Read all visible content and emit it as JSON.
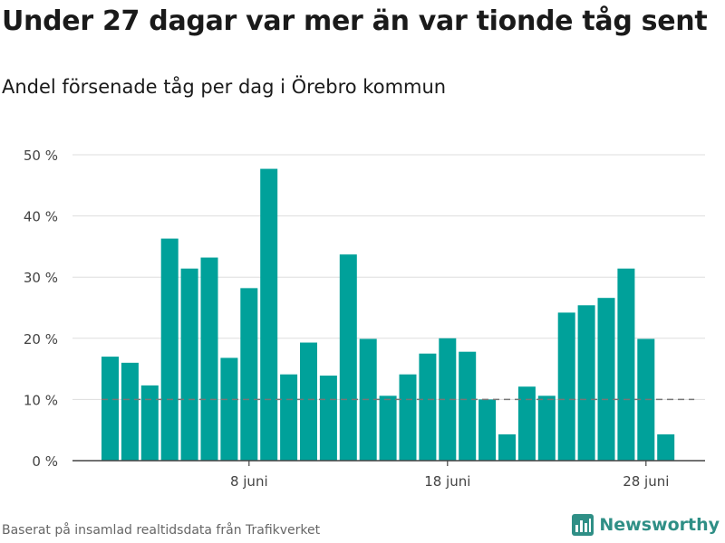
{
  "title": "Under 27 dagar var mer än var tionde tåg sent",
  "subtitle": "Andel försenade tåg per dag i Örebro kommun",
  "source": "Baserat på insamlad realtidsdata från Trafikverket",
  "brand": {
    "name": "Newsworthy",
    "icon": "bar-chart-logo-icon"
  },
  "colors": {
    "bar": "#00a19a",
    "reference_line": "#777777",
    "grid": "#dddddd",
    "brand": "#2f8f86"
  },
  "chart_data": {
    "type": "bar",
    "x_start": "2024-06-01",
    "x_end": "2024-06-30",
    "categories": [
      "1 juni",
      "2 juni",
      "3 juni",
      "4 juni",
      "5 juni",
      "6 juni",
      "7 juni",
      "8 juni",
      "9 juni",
      "10 juni",
      "11 juni",
      "12 juni",
      "13 juni",
      "14 juni",
      "15 juni",
      "16 juni",
      "17 juni",
      "18 juni",
      "19 juni",
      "20 juni",
      "21 juni",
      "22 juni",
      "23 juni",
      "24 juni",
      "25 juni",
      "26 juni",
      "27 juni",
      "28 juni",
      "29 juni",
      "30 juni"
    ],
    "values": [
      17,
      16,
      12.3,
      36.3,
      31.4,
      33.2,
      16.8,
      28.2,
      47.7,
      14.1,
      19.3,
      13.9,
      33.7,
      19.9,
      10.6,
      14.1,
      17.5,
      20.0,
      17.8,
      10.0,
      4.3,
      12.1,
      10.6,
      24.2,
      25.4,
      26.6,
      31.4,
      19.9,
      4.3,
      null
    ],
    "reference_line": 10,
    "ylim": [
      0,
      50
    ],
    "ytick_values": [
      0,
      10,
      20,
      30,
      40,
      50
    ],
    "ytick_labels": [
      "0 %",
      "10 %",
      "20 %",
      "30 %",
      "40 %",
      "50 %"
    ],
    "xtick_labels": [
      {
        "index": 7,
        "label": "8 juni"
      },
      {
        "index": 17,
        "label": "18 juni"
      },
      {
        "index": 27,
        "label": "28 juni"
      }
    ],
    "grid": true,
    "xlabel": "",
    "ylabel": ""
  }
}
